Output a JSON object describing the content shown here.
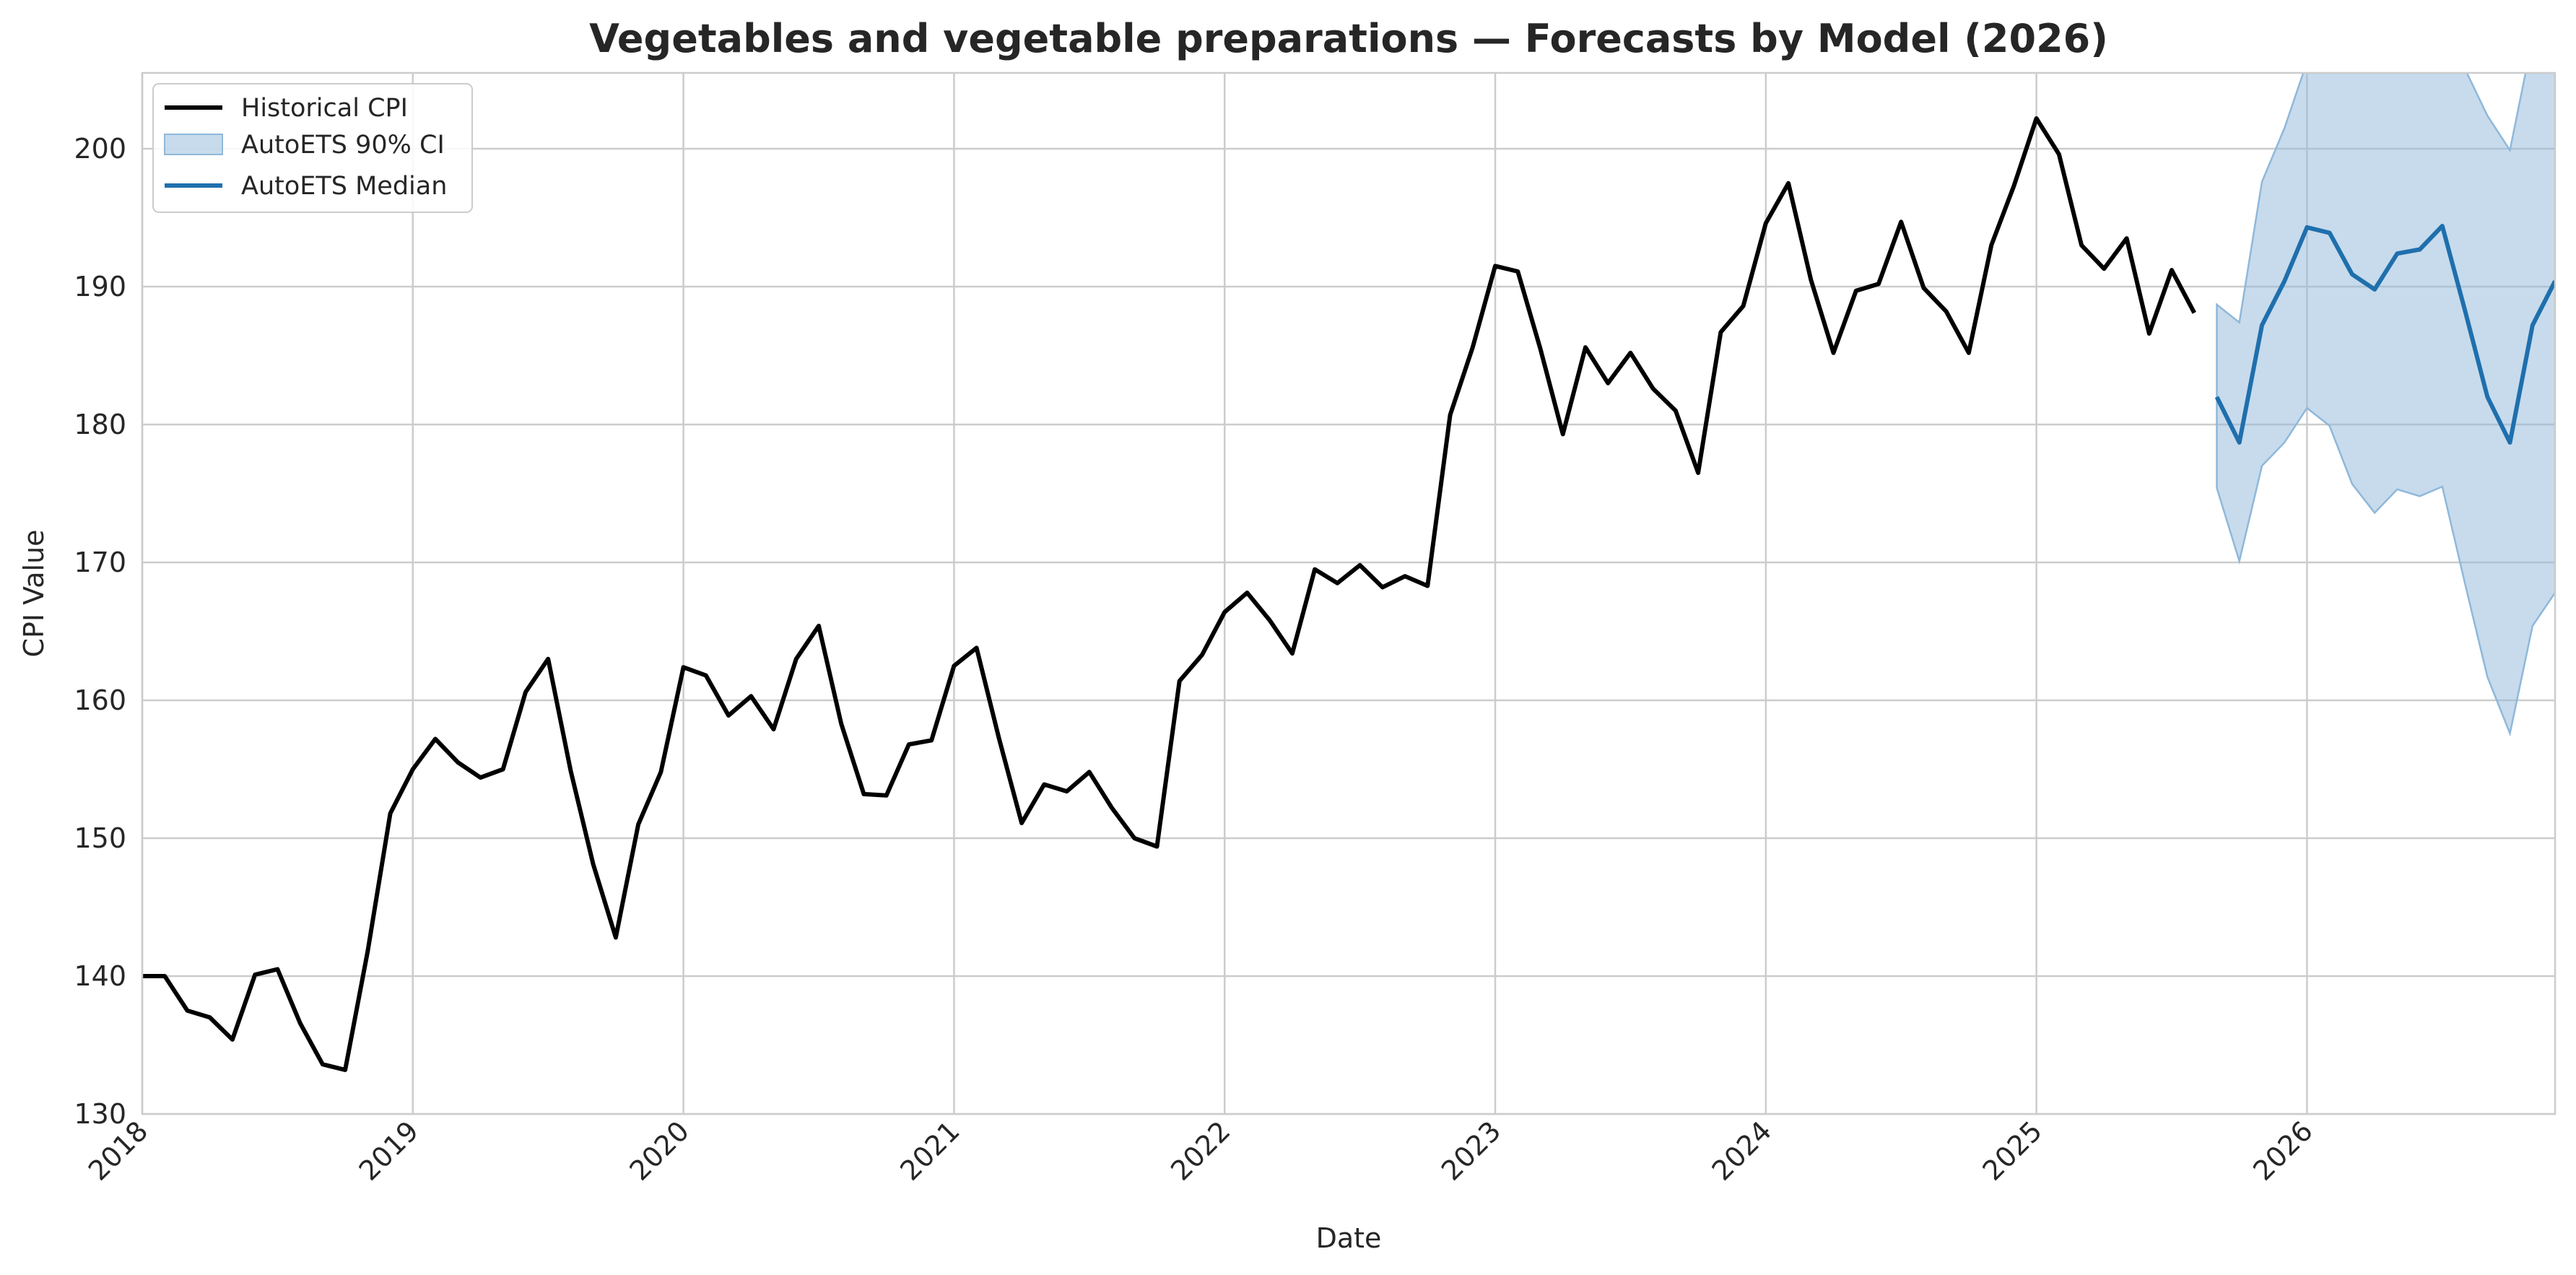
{
  "chart_data": {
    "type": "line",
    "title": "Vegetables and vegetable preparations — Forecasts by Model (2026)",
    "xlabel": "Date",
    "ylabel": "CPI Value",
    "xlim": [
      "2018-01",
      "2026-12"
    ],
    "ylim": [
      130,
      205.5
    ],
    "x_ticks": [
      "2018",
      "2019",
      "2020",
      "2021",
      "2022",
      "2023",
      "2024",
      "2025",
      "2026"
    ],
    "y_ticks": [
      130,
      140,
      150,
      160,
      170,
      180,
      190,
      200
    ],
    "grid": true,
    "legend_position": "top-left",
    "colors": {
      "historical": "#000000",
      "median": "#1f6fad",
      "ci": "#8fb8da",
      "grid": "#cccccc"
    },
    "series": [
      {
        "name": "Historical CPI",
        "x": [
          "2018-01",
          "2018-02",
          "2018-03",
          "2018-04",
          "2018-05",
          "2018-06",
          "2018-07",
          "2018-08",
          "2018-09",
          "2018-10",
          "2018-11",
          "2018-12",
          "2019-01",
          "2019-02",
          "2019-03",
          "2019-04",
          "2019-05",
          "2019-06",
          "2019-07",
          "2019-08",
          "2019-09",
          "2019-10",
          "2019-11",
          "2019-12",
          "2020-01",
          "2020-02",
          "2020-03",
          "2020-04",
          "2020-05",
          "2020-06",
          "2020-07",
          "2020-08",
          "2020-09",
          "2020-10",
          "2020-11",
          "2020-12",
          "2021-01",
          "2021-02",
          "2021-03",
          "2021-04",
          "2021-05",
          "2021-06",
          "2021-07",
          "2021-08",
          "2021-09",
          "2021-10",
          "2021-11",
          "2021-12",
          "2022-01",
          "2022-02",
          "2022-03",
          "2022-04",
          "2022-05",
          "2022-06",
          "2022-07",
          "2022-08",
          "2022-09",
          "2022-10",
          "2022-11",
          "2022-12",
          "2023-01",
          "2023-02",
          "2023-03",
          "2023-04",
          "2023-05",
          "2023-06",
          "2023-07",
          "2023-08",
          "2023-09",
          "2023-10",
          "2023-11",
          "2023-12",
          "2024-01",
          "2024-02",
          "2024-03",
          "2024-04",
          "2024-05",
          "2024-06",
          "2024-07",
          "2024-08",
          "2024-09",
          "2024-10",
          "2024-11",
          "2024-12",
          "2025-01",
          "2025-02",
          "2025-03",
          "2025-04",
          "2025-05",
          "2025-06",
          "2025-07",
          "2025-08"
        ],
        "values": [
          140.0,
          140.0,
          137.5,
          137.0,
          135.4,
          140.1,
          140.5,
          136.6,
          133.6,
          133.2,
          141.8,
          151.8,
          155.0,
          157.2,
          155.5,
          154.4,
          155.0,
          160.6,
          163.0,
          154.9,
          148.1,
          142.8,
          151.0,
          154.8,
          162.4,
          161.8,
          158.9,
          160.3,
          157.9,
          163.0,
          165.4,
          158.3,
          153.2,
          153.1,
          156.8,
          157.1,
          162.5,
          163.8,
          157.2,
          151.1,
          153.9,
          153.4,
          154.8,
          152.2,
          150.0,
          149.4,
          161.4,
          163.3,
          166.4,
          167.8,
          165.8,
          163.4,
          169.5,
          168.5,
          169.8,
          168.2,
          169.0,
          168.3,
          180.7,
          185.6,
          191.5,
          191.1,
          185.5,
          179.3,
          185.6,
          183.0,
          185.2,
          182.6,
          181.0,
          176.5,
          186.7,
          188.6,
          194.6,
          197.5,
          190.5,
          185.2,
          189.7,
          190.2,
          194.7,
          189.9,
          188.2,
          185.2,
          193.0,
          197.3,
          202.2,
          199.6,
          193.0,
          191.3,
          193.5,
          186.6,
          191.2,
          188.1
        ]
      },
      {
        "name": "AutoETS Median",
        "x": [
          "2025-09",
          "2025-10",
          "2025-11",
          "2025-12",
          "2026-01",
          "2026-02",
          "2026-03",
          "2026-04",
          "2026-05",
          "2026-06",
          "2026-07",
          "2026-08",
          "2026-09",
          "2026-10",
          "2026-11",
          "2026-12"
        ],
        "values": [
          182.0,
          178.7,
          187.2,
          190.4,
          194.3,
          193.9,
          190.9,
          189.8,
          192.4,
          192.7,
          194.4,
          188.3,
          182.0,
          178.7,
          187.2,
          190.4
        ]
      },
      {
        "name": "AutoETS 90% CI",
        "x": [
          "2025-09",
          "2025-10",
          "2025-11",
          "2025-12",
          "2026-01",
          "2026-02",
          "2026-03",
          "2026-04",
          "2026-05",
          "2026-06",
          "2026-07",
          "2026-08",
          "2026-09",
          "2026-10",
          "2026-11",
          "2026-12"
        ],
        "lower": [
          175.4,
          170.1,
          177.0,
          178.7,
          181.2,
          179.9,
          175.7,
          173.6,
          175.3,
          174.8,
          175.5,
          168.5,
          161.7,
          157.6,
          165.4,
          167.8
        ],
        "upper": [
          188.7,
          187.4,
          197.6,
          201.5,
          206.3,
          207.4,
          207.8,
          207.6,
          208.6,
          209.0,
          208.8,
          205.8,
          202.4,
          199.9,
          208.0,
          213.0
        ]
      }
    ]
  }
}
